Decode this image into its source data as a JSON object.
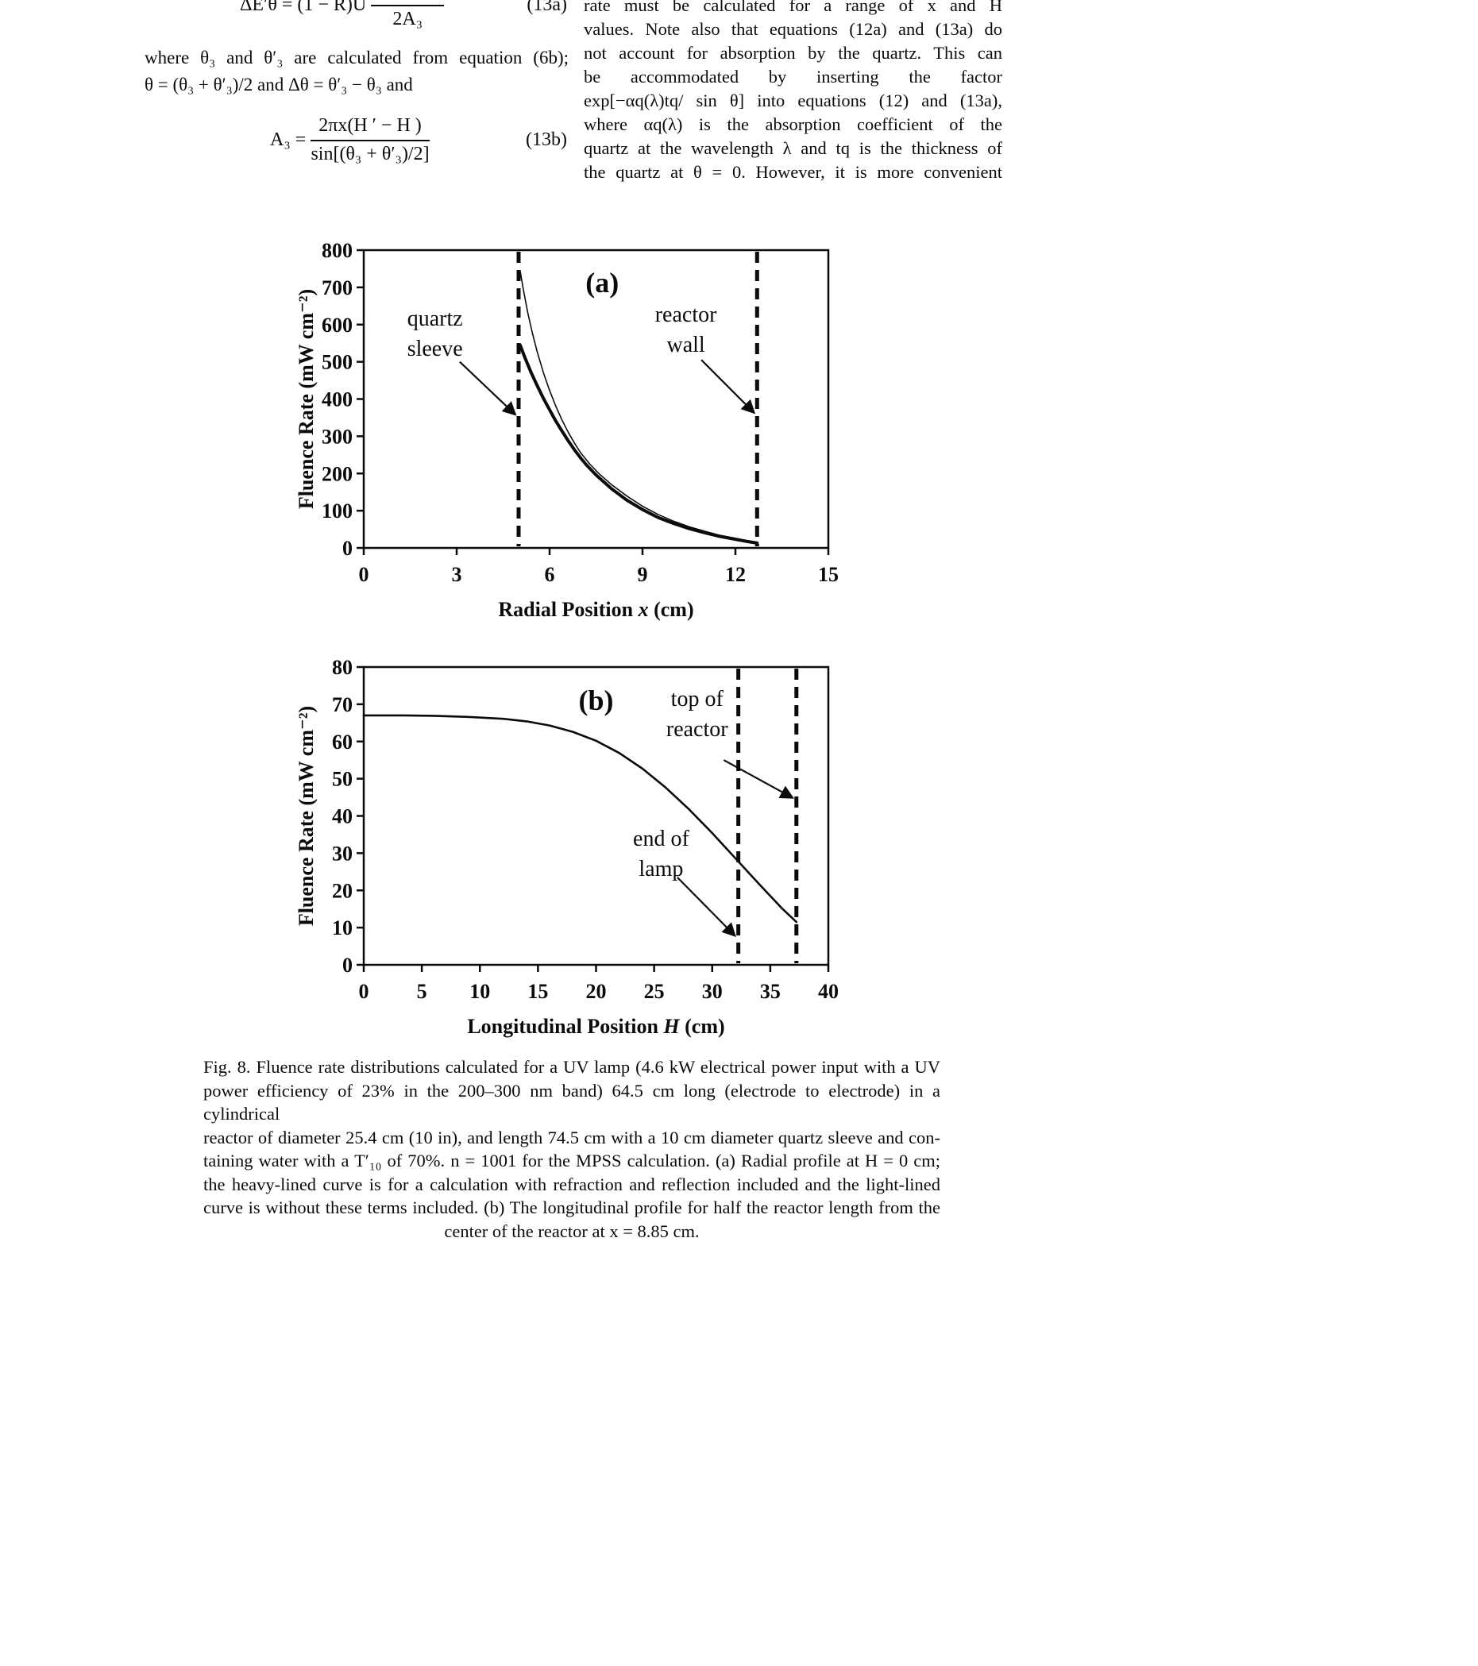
{
  "article": {
    "left_column": {
      "eq13a": {
        "lhs": "ΔE′θ = (1 − R)U",
        "numerator": "",
        "denominator": "2A₃",
        "tag": "(13a)"
      },
      "para_lines": [
        "where θ₃ and θ′₃ are calculated from equation (6b);",
        "θ = (θ₃ + θ′₃)/2 and Δθ = θ′₃ − θ₃ and"
      ],
      "eq13b": {
        "lhs": "A₃ =",
        "numerator": "2πx(H ′ − H )",
        "denominator": "sin[(θ₃ + θ′₃)/2]",
        "tag": "(13b)"
      }
    },
    "right_column": {
      "para_lines": [
        "rate must be calculated for a range of x and H",
        "values. Note also that equations (12a) and (13a) do",
        "not account for absorption by the quartz. This can",
        "be accommodated by inserting the factor",
        "exp[−αq(λ)tq/ sin θ] into equations (12) and (13a),",
        "where αq(λ) is the absorption coefficient of the",
        "quartz at the wavelength λ and tq is the thickness of",
        "the quartz at θ = 0. However, it is more convenient"
      ]
    },
    "caption_lines": [
      "Fig. 8. Fluence rate distributions calculated for a UV lamp (4.6 kW electrical power input with a UV",
      "power efficiency of 23% in the 200–300 nm band) 64.5 cm long (electrode to electrode) in a cylindrical",
      "reactor of diameter 25.4 cm (10 in), and length 74.5 cm with a 10 cm diameter quartz sleeve and con-",
      "taining water with a T′₁₀ of 70%. n = 1001 for the MPSS calculation. (a) Radial profile at H = 0 cm;",
      "the heavy-lined curve is for a calculation with refraction and reflection included and the light-lined",
      "curve is without these terms included. (b) The longitudinal profile for half the reactor length from the",
      "center of the reactor at x = 8.85 cm."
    ]
  },
  "chart_data": [
    {
      "id": "a",
      "type": "line",
      "panel": "(a)",
      "xlabel": [
        {
          "text": "Radial Position "
        },
        {
          "text": "x",
          "italic": true
        },
        {
          "text": " (cm)"
        }
      ],
      "ylabel": [
        {
          "text": "Fluence Rate (mW cm⁻²)"
        }
      ],
      "xlim": [
        0,
        15
      ],
      "ylim": [
        0,
        800
      ],
      "xticks": [
        0,
        3,
        6,
        9,
        12,
        15
      ],
      "yticks": [
        0,
        100,
        200,
        300,
        400,
        500,
        600,
        700,
        800
      ],
      "margins": {
        "l": 90,
        "r": 25,
        "t": 15,
        "b": 100
      },
      "grid": false,
      "vlines": [
        {
          "x": 5.0,
          "label": "quartz sleeve",
          "name": "quartz-sleeve-line"
        },
        {
          "x": 12.7,
          "label": "reactor wall",
          "name": "reactor-wall-line"
        }
      ],
      "series": [
        {
          "name": "with-refraction-and-reflection-heavy-line",
          "stroke_width": 4,
          "points": [
            [
              5.05,
              545
            ],
            [
              5.2,
              512
            ],
            [
              5.4,
              472
            ],
            [
              5.6,
              436
            ],
            [
              5.8,
              402
            ],
            [
              6,
              371
            ],
            [
              6.2,
              341
            ],
            [
              6.4,
              314
            ],
            [
              6.6,
              288
            ],
            [
              6.8,
              264
            ],
            [
              7,
              242
            ],
            [
              7.2,
              222
            ],
            [
              7.5,
              196
            ],
            [
              8,
              159
            ],
            [
              8.5,
              128
            ],
            [
              9,
              103
            ],
            [
              9.5,
              82
            ],
            [
              10,
              66
            ],
            [
              10.5,
              52
            ],
            [
              11,
              41
            ],
            [
              11.5,
              31
            ],
            [
              12,
              23
            ],
            [
              12.4,
              17
            ],
            [
              12.7,
              13
            ]
          ]
        },
        {
          "name": "without-refraction-and-reflection-light-line",
          "stroke_width": 1.6,
          "points": [
            [
              5.05,
              745
            ],
            [
              5.15,
              695
            ],
            [
              5.3,
              630
            ],
            [
              5.45,
              575
            ],
            [
              5.6,
              527
            ],
            [
              5.8,
              471
            ],
            [
              6,
              423
            ],
            [
              6.2,
              381
            ],
            [
              6.4,
              344
            ],
            [
              6.6,
              311
            ],
            [
              6.8,
              282
            ],
            [
              7,
              256
            ],
            [
              7.3,
              225
            ],
            [
              7.6,
              199
            ],
            [
              8,
              170
            ],
            [
              8.5,
              139
            ],
            [
              9,
              112
            ],
            [
              9.5,
              90
            ],
            [
              10,
              72
            ],
            [
              10.5,
              57
            ],
            [
              11,
              45
            ],
            [
              11.5,
              34
            ],
            [
              12,
              26
            ],
            [
              12.4,
              19
            ],
            [
              12.7,
              15
            ]
          ]
        }
      ],
      "annotations": [
        {
          "name": "panel-label-a",
          "lines": [
            "(a)"
          ],
          "x": 7.7,
          "y": 687,
          "size": 36,
          "bold": true
        },
        {
          "name": "quartz-sleeve-label",
          "lines": [
            "quartz",
            "sleeve"
          ],
          "x": 2.3,
          "y": 597,
          "lh": 38
        },
        {
          "name": "reactor-wall-label",
          "lines": [
            "reactor",
            "wall"
          ],
          "x": 10.4,
          "y": 608,
          "lh": 38
        }
      ],
      "arrows": [
        {
          "x1": 3.1,
          "y1": 500,
          "x2": 4.87,
          "y2": 360
        },
        {
          "x1": 10.9,
          "y1": 505,
          "x2": 12.58,
          "y2": 365
        }
      ]
    },
    {
      "id": "b",
      "type": "line",
      "panel": "(b)",
      "xlabel": [
        {
          "text": "Longitudinal Position "
        },
        {
          "text": "H",
          "italic": true
        },
        {
          "text": " (cm)"
        }
      ],
      "ylabel": [
        {
          "text": "Fluence Rate (mW cm⁻²)"
        }
      ],
      "xlim": [
        0,
        40
      ],
      "ylim": [
        0,
        80
      ],
      "xticks": [
        0,
        5,
        10,
        15,
        20,
        25,
        30,
        35,
        40
      ],
      "yticks": [
        0,
        10,
        20,
        30,
        40,
        50,
        60,
        70,
        80
      ],
      "margins": {
        "l": 90,
        "r": 25,
        "t": 15,
        "b": 100
      },
      "grid": false,
      "vlines": [
        {
          "x": 32.25,
          "label": "end of lamp",
          "name": "end-of-lamp-line"
        },
        {
          "x": 37.25,
          "label": "top of reactor",
          "name": "top-of-reactor-line"
        }
      ],
      "series": [
        {
          "name": "longitudinal-fluence-profile",
          "stroke_width": 2.6,
          "points": [
            [
              0,
              67
            ],
            [
              3,
              67
            ],
            [
              6,
              66.9
            ],
            [
              9,
              66.6
            ],
            [
              12,
              66.1
            ],
            [
              14,
              65.4
            ],
            [
              16,
              64.3
            ],
            [
              18,
              62.6
            ],
            [
              20,
              60.2
            ],
            [
              22,
              56.9
            ],
            [
              24,
              52.7
            ],
            [
              26,
              47.6
            ],
            [
              28,
              41.8
            ],
            [
              30,
              35.4
            ],
            [
              32,
              28.6
            ],
            [
              34,
              21.8
            ],
            [
              36,
              15.2
            ],
            [
              37.25,
              11.5
            ]
          ]
        }
      ],
      "annotations": [
        {
          "name": "panel-label-b",
          "lines": [
            "(b)"
          ],
          "x": 20,
          "y": 68.5,
          "size": 36,
          "bold": true
        },
        {
          "name": "top-of-reactor-label",
          "lines": [
            "top of",
            "reactor"
          ],
          "x": 28.7,
          "y": 69.5,
          "lh": 38
        },
        {
          "name": "end-of-lamp-label",
          "lines": [
            "end of",
            "lamp"
          ],
          "x": 25.6,
          "y": 32,
          "lh": 38
        }
      ],
      "arrows": [
        {
          "x1": 31,
          "y1": 55,
          "x2": 36.85,
          "y2": 45
        },
        {
          "x1": 27,
          "y1": 23.5,
          "x2": 31.9,
          "y2": 8
        }
      ]
    }
  ]
}
